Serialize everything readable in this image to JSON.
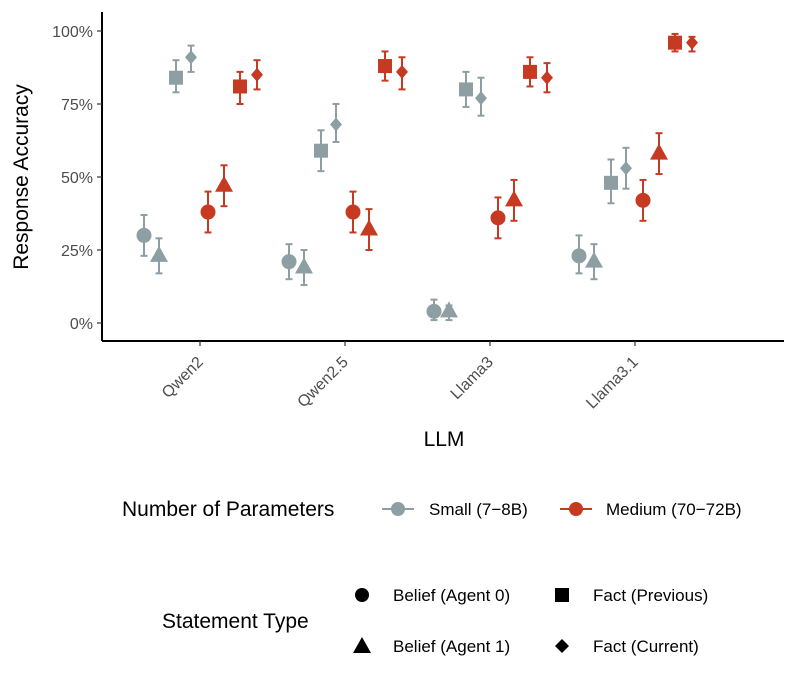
{
  "chart_data": {
    "type": "scatter",
    "xlabel": "LLM",
    "ylabel": "Response Accuracy",
    "categories": [
      "Qwen2",
      "Qwen2.5",
      "Llama3",
      "Llama3.1"
    ],
    "y_ticks": [
      "0%",
      "25%",
      "50%",
      "75%",
      "100%"
    ],
    "ylim": [
      0,
      100
    ],
    "legend_size": {
      "title": "Number of Parameters",
      "entries": [
        {
          "key": "small",
          "label": "Small (7−8B)",
          "color": "#8e9fa4"
        },
        {
          "key": "medium",
          "label": "Medium (70−72B)",
          "color": "#c73a22"
        }
      ]
    },
    "legend_statement": {
      "title": "Statement Type",
      "entries": [
        {
          "key": "belief0",
          "label": "Belief (Agent 0)",
          "shape": "circle"
        },
        {
          "key": "fact_prev",
          "label": "Fact (Previous)",
          "shape": "square"
        },
        {
          "key": "belief1",
          "label": "Belief (Agent 1)",
          "shape": "triangle"
        },
        {
          "key": "fact_cur",
          "label": "Fact (Current)",
          "shape": "diamond"
        }
      ]
    },
    "series": [
      {
        "size": "small",
        "statement": "belief0",
        "values": [
          30,
          21,
          4,
          23
        ],
        "lower": [
          23,
          15,
          1,
          17
        ],
        "upper": [
          37,
          27,
          8,
          30
        ]
      },
      {
        "size": "small",
        "statement": "belief1",
        "values": [
          23,
          19,
          4,
          21
        ],
        "lower": [
          17,
          13,
          1,
          15
        ],
        "upper": [
          29,
          25,
          6,
          27
        ]
      },
      {
        "size": "small",
        "statement": "fact_prev",
        "values": [
          84,
          59,
          80,
          48
        ],
        "lower": [
          79,
          52,
          74,
          41
        ],
        "upper": [
          90,
          66,
          86,
          56
        ]
      },
      {
        "size": "small",
        "statement": "fact_cur",
        "values": [
          91,
          68,
          77,
          53
        ],
        "lower": [
          86,
          62,
          71,
          46
        ],
        "upper": [
          95,
          75,
          84,
          60
        ]
      },
      {
        "size": "medium",
        "statement": "belief0",
        "values": [
          38,
          38,
          36,
          42
        ],
        "lower": [
          31,
          31,
          29,
          35
        ],
        "upper": [
          45,
          45,
          43,
          49
        ]
      },
      {
        "size": "medium",
        "statement": "belief1",
        "values": [
          47,
          32,
          42,
          58
        ],
        "lower": [
          40,
          25,
          35,
          51
        ],
        "upper": [
          54,
          39,
          49,
          65
        ]
      },
      {
        "size": "medium",
        "statement": "fact_prev",
        "values": [
          81,
          88,
          86,
          96
        ],
        "lower": [
          75,
          83,
          81,
          93
        ],
        "upper": [
          86,
          93,
          91,
          99
        ]
      },
      {
        "size": "medium",
        "statement": "fact_cur",
        "values": [
          85,
          86,
          84,
          96
        ],
        "lower": [
          80,
          80,
          79,
          93
        ],
        "upper": [
          90,
          91,
          89,
          98
        ]
      }
    ]
  }
}
